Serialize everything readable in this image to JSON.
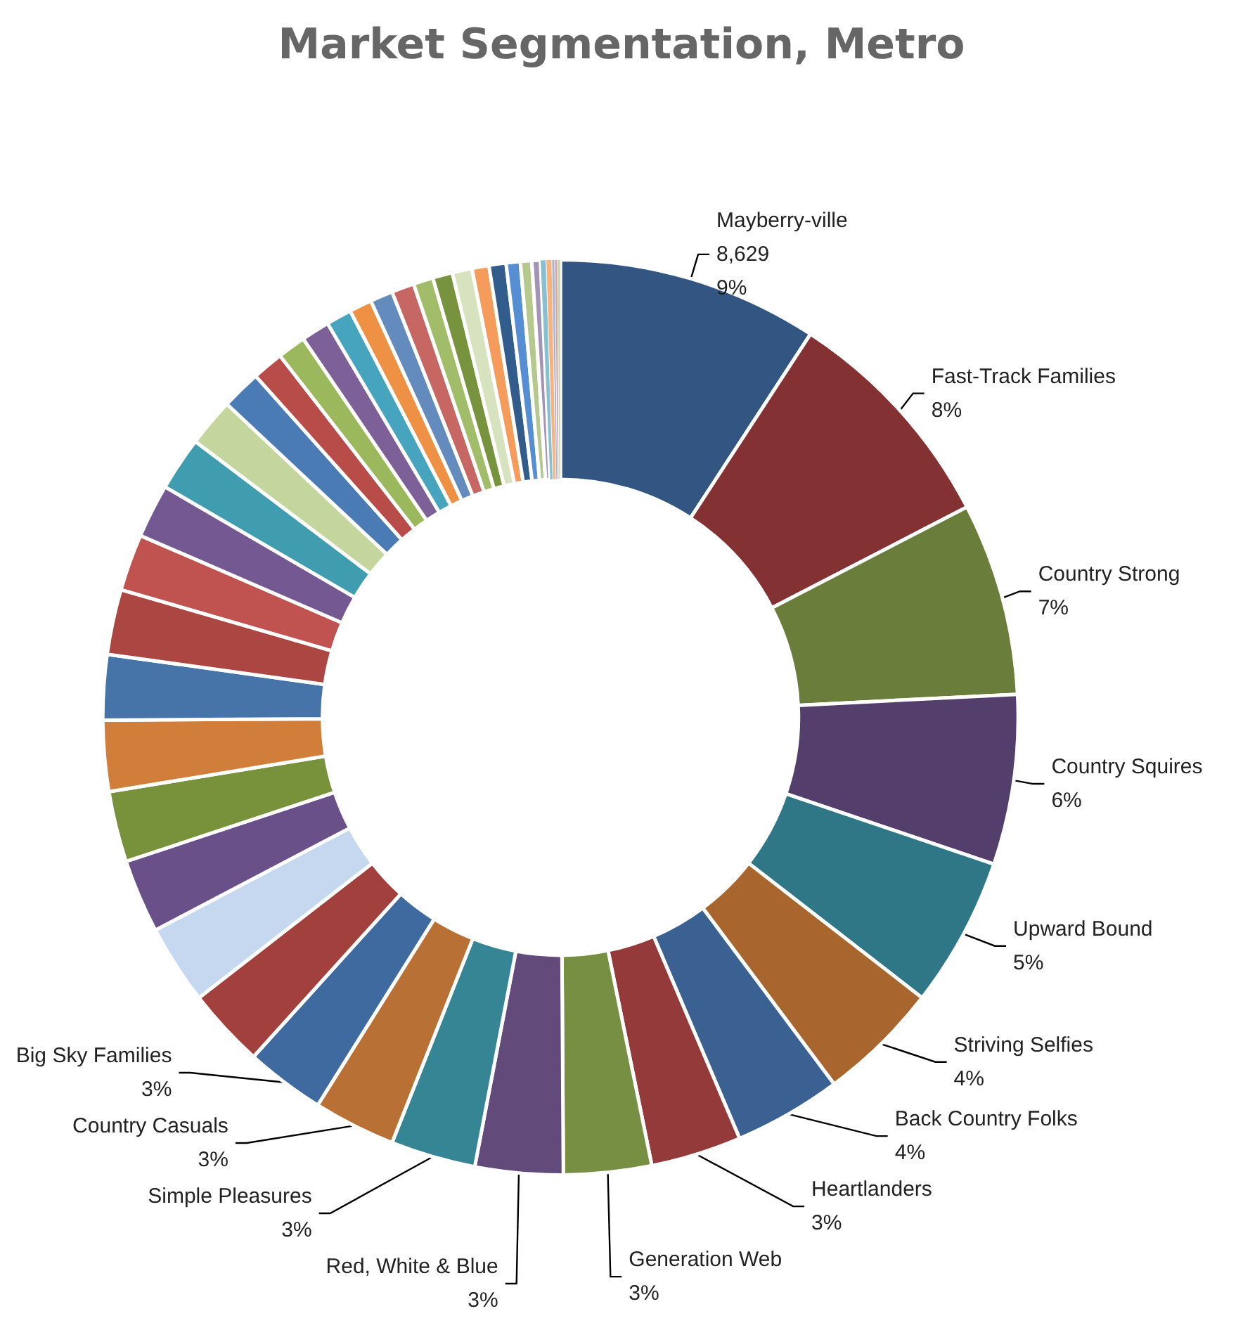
{
  "chart_data": {
    "type": "donut",
    "title": "Market Segmentation, Metro",
    "categories": [
      "Mayberry-ville",
      "Fast-Track Families",
      "Country Strong",
      "Country Squires",
      "Upward Bound",
      "Striving Selfies",
      "Back Country Folks",
      "Heartlanders",
      "Generation Web",
      "Red, White & Blue",
      "Simple Pleasures",
      "Country Casuals",
      "Big Sky Families",
      null,
      null,
      null,
      null,
      null,
      null,
      null,
      null,
      null,
      null,
      null,
      null,
      null,
      null,
      null,
      null,
      null,
      null,
      null,
      null,
      null,
      null,
      null,
      null,
      null,
      null,
      null,
      null,
      null,
      null,
      null,
      null
    ],
    "values": [
      9.2,
      8.2,
      6.8,
      6.0,
      5.3,
      4.3,
      3.8,
      3.2,
      3.1,
      3.1,
      3.0,
      2.9,
      2.8,
      2.8,
      2.8,
      2.6,
      2.5,
      2.5,
      2.3,
      2.3,
      2.0,
      1.9,
      1.9,
      1.7,
      1.4,
      1.1,
      1.0,
      1.0,
      0.9,
      0.8,
      0.8,
      0.8,
      0.7,
      0.7,
      0.7,
      0.6,
      0.6,
      0.5,
      0.4,
      0.3,
      0.2,
      0.2,
      0.1,
      0.1,
      0.1
    ],
    "value_labels": [
      "8,629\n9%",
      "8%",
      "7%",
      "6%",
      "5%",
      "4%",
      "4%",
      "3%",
      "3%",
      "3%",
      "3%",
      "3%",
      "3%",
      null,
      null,
      null,
      null,
      null,
      null,
      null,
      null,
      null,
      null,
      null,
      null,
      null,
      null,
      null,
      null,
      null,
      null,
      null,
      null,
      null,
      null,
      null,
      null,
      null,
      null,
      null,
      null,
      null,
      null,
      null,
      null
    ],
    "colors": [
      "#325681",
      "#843133",
      "#6a7d3a",
      "#543e6c",
      "#2f7687",
      "#a8652e",
      "#3b6192",
      "#943a3a",
      "#768f43",
      "#624a7a",
      "#368594",
      "#b97034",
      "#3f6a9f",
      "#a2403d",
      "#c6d8ef",
      "#6a5088",
      "#78923c",
      "#d07e3a",
      "#4674a8",
      "#ab4642",
      "#c05250",
      "#735891",
      "#409caf",
      "#c4d69d",
      "#4a7bb4",
      "#b84c49",
      "#9bb95c",
      "#7e6099",
      "#46a4be",
      "#ee9144",
      "#638bbd",
      "#c76763",
      "#a2bd69",
      "#78933d",
      "#d7e3bf",
      "#f59c5d",
      "#325c8c",
      "#568ed4",
      "#b5c98f",
      "#a393b7",
      "#87c0d0",
      "#f9b17e",
      "#a1b4d4",
      "#d4a3a2",
      "#c5d4a9"
    ],
    "legend": false
  }
}
